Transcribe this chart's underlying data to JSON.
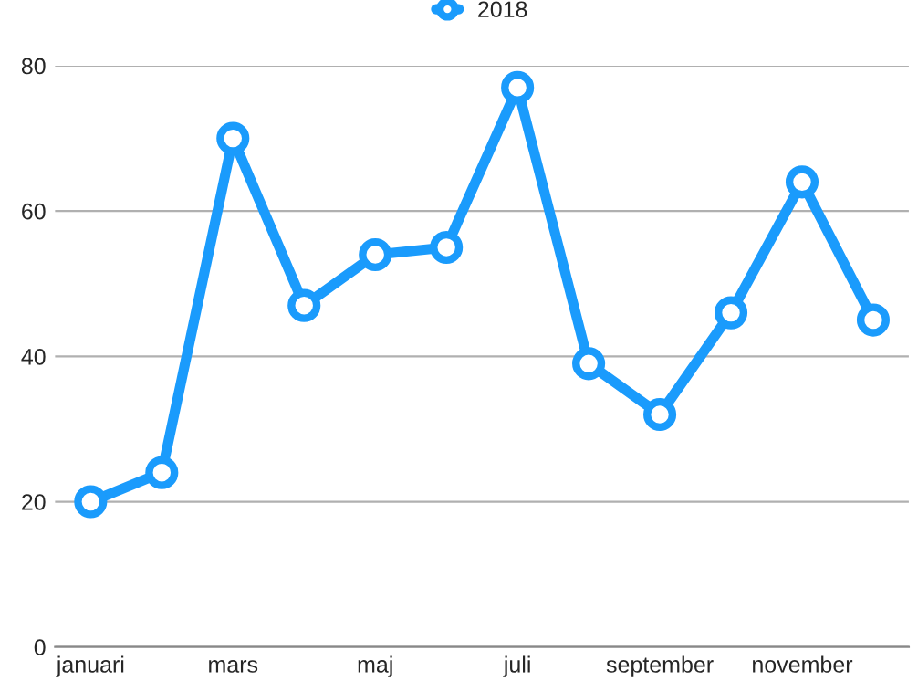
{
  "chart_data": {
    "type": "line",
    "categories": [
      "januari",
      null,
      "mars",
      null,
      "maj",
      null,
      "juli",
      null,
      "september",
      null,
      "november",
      null
    ],
    "series": [
      {
        "name": "2018",
        "color": "#1a9bfc",
        "values": [
          20,
          24,
          70,
          47,
          54,
          55,
          77,
          39,
          32,
          46,
          64,
          45
        ]
      }
    ],
    "ylim": [
      0,
      80
    ],
    "yticks": [
      0,
      20,
      40,
      60,
      80
    ],
    "grid": "y",
    "legend": "top",
    "marker": "circle",
    "line_style": "solid"
  }
}
